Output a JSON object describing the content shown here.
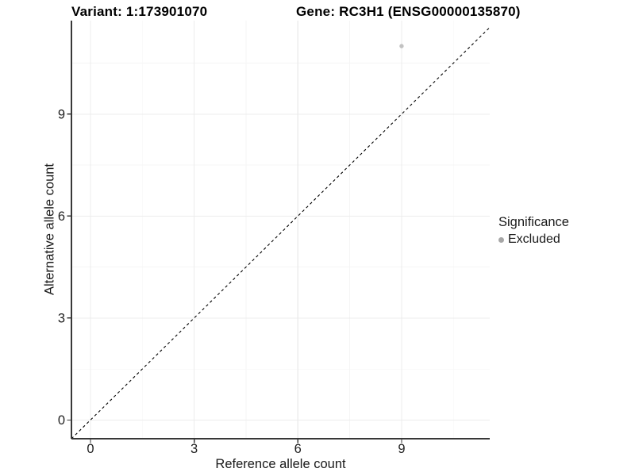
{
  "colors": {
    "background": "#ffffff",
    "axis_line": "#383838",
    "tick_text": "#1f1f1f",
    "grid_major": "#ececec",
    "grid_minor": "#f5f5f5",
    "abline": "#000000",
    "excluded_grey": "#b3b3b3",
    "point_grey": "#c2c2c2",
    "legend_key_grey": "#a6a6a6"
  },
  "legend": {
    "title": "Significance",
    "items": [
      {
        "label": "Excluded",
        "color": "#b3b3b3"
      }
    ]
  },
  "chart_data": {
    "type": "scatter",
    "title_left": "Variant: 1:173901070",
    "title_right": "Gene: RC3H1 (ENSG00000135870)",
    "xlabel": "Reference allele count",
    "ylabel": "Alternative allele count",
    "xlim": [
      -0.55,
      11.55
    ],
    "ylim": [
      -0.55,
      11.75
    ],
    "x_ticks": [
      0,
      3,
      6,
      9
    ],
    "y_ticks": [
      0,
      3,
      6,
      9
    ],
    "x_minor": [
      1.5,
      4.5,
      7.5,
      10.5
    ],
    "y_minor": [
      1.5,
      4.5,
      7.5,
      10.5
    ],
    "grid": true,
    "legend_position": "right",
    "series": [
      {
        "name": "Excluded",
        "color": "#c2c2c2",
        "points": [
          {
            "x": 9,
            "y": 11
          }
        ]
      }
    ],
    "abline": {
      "slope": 1,
      "intercept": 0,
      "linetype": "dashed",
      "color": "#000000"
    }
  }
}
